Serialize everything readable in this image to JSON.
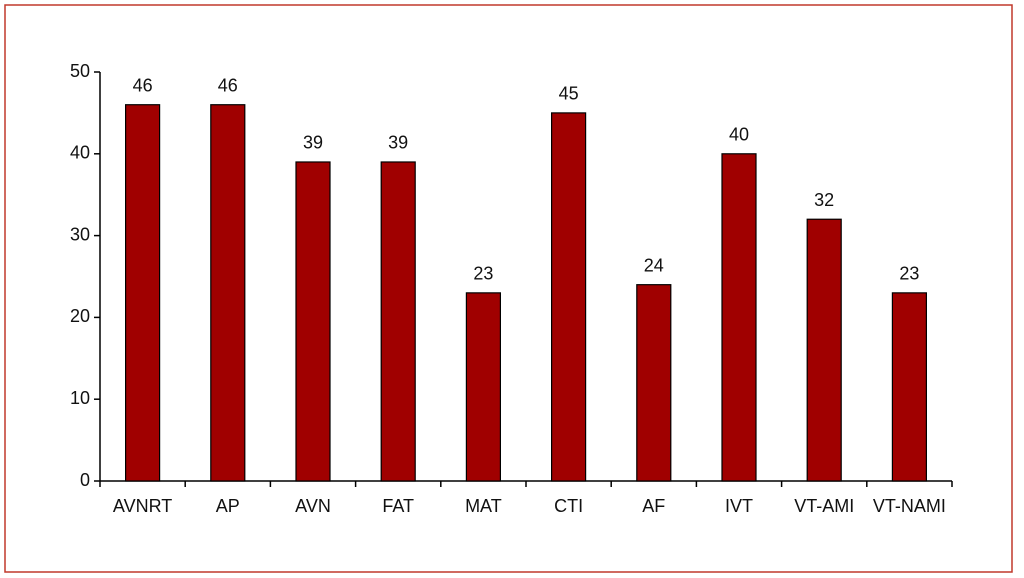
{
  "chart_data": {
    "type": "bar",
    "categories": [
      "AVNRT",
      "AP",
      "AVN",
      "FAT",
      "MAT",
      "CTI",
      "AF",
      "IVT",
      "VT-AMI",
      "VT-NAMI"
    ],
    "values": [
      46,
      46,
      39,
      39,
      23,
      45,
      24,
      40,
      32,
      23
    ],
    "color": "#a00000",
    "ylim": [
      0,
      50
    ],
    "yticks": [
      0,
      10,
      20,
      30,
      40,
      50
    ],
    "grid": false
  }
}
